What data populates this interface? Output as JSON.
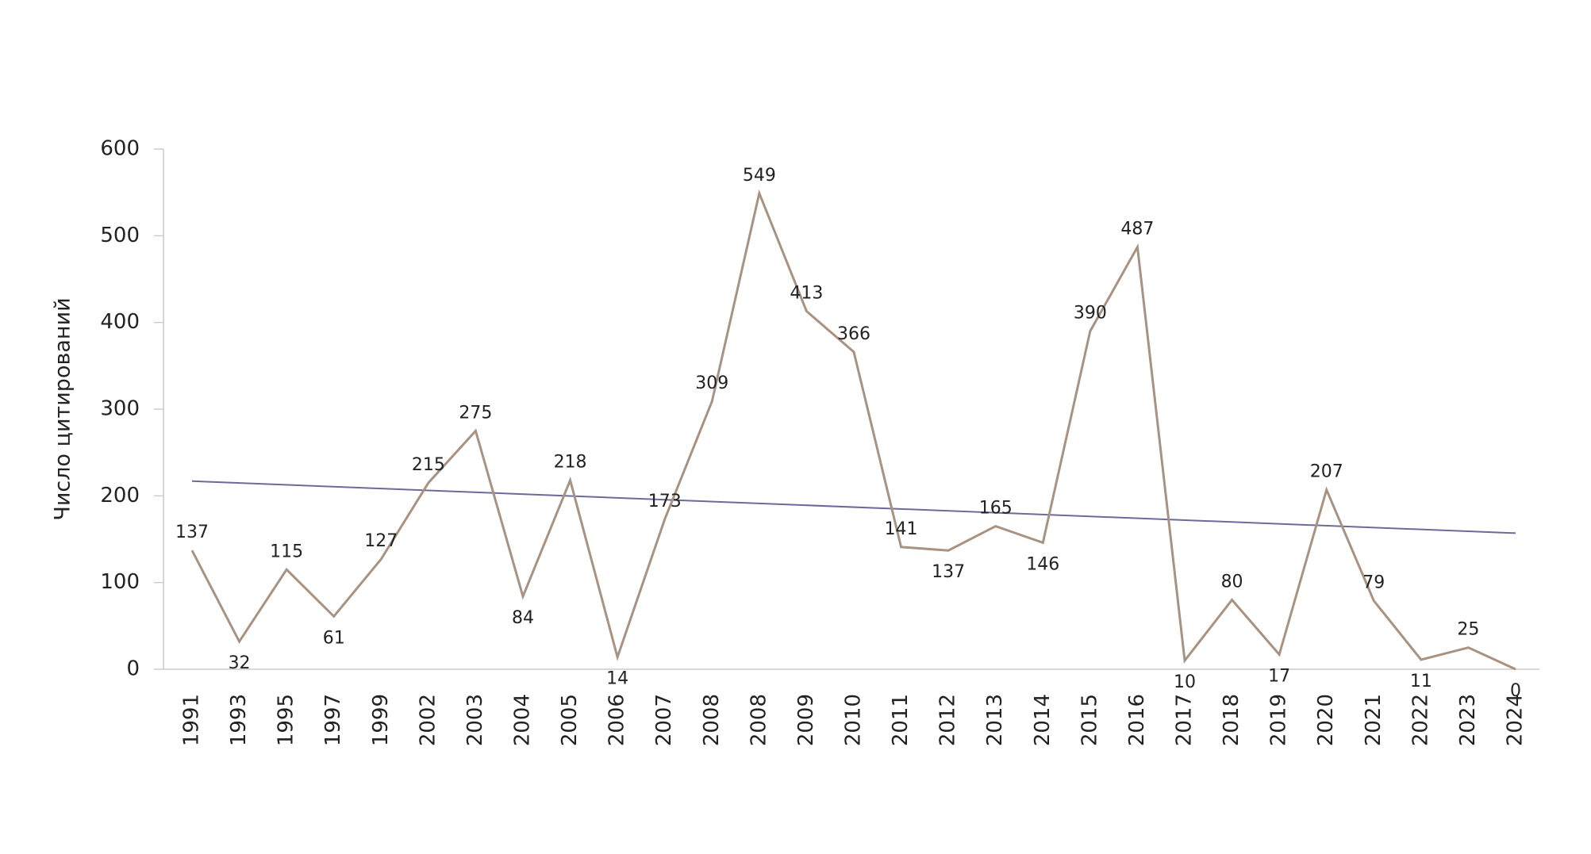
{
  "chart_data": {
    "type": "line",
    "y_axis_label": "Число цитирований",
    "categories": [
      "1991",
      "1993",
      "1995",
      "1997",
      "1999",
      "2002",
      "2003",
      "2004",
      "2005",
      "2006",
      "2007",
      "2008",
      "2008",
      "2009",
      "2010",
      "2011",
      "2012",
      "2013",
      "2014",
      "2015",
      "2016",
      "2017",
      "2018",
      "2019",
      "2020",
      "2021",
      "2022",
      "2023",
      "2024"
    ],
    "series": [
      {
        "color": "#a89282",
        "values": [
          137,
          32,
          115,
          61,
          127,
          215,
          275,
          84,
          218,
          14,
          173,
          309,
          549,
          413,
          366,
          141,
          137,
          165,
          146,
          390,
          487,
          10,
          80,
          17,
          207,
          79,
          11,
          25,
          0
        ]
      }
    ],
    "trendline": {
      "color": "#6b6b9a",
      "values": [
        217,
        157
      ]
    },
    "ylim": [
      0,
      600
    ],
    "yticks": [
      0,
      100,
      200,
      300,
      400,
      500,
      600
    ]
  }
}
